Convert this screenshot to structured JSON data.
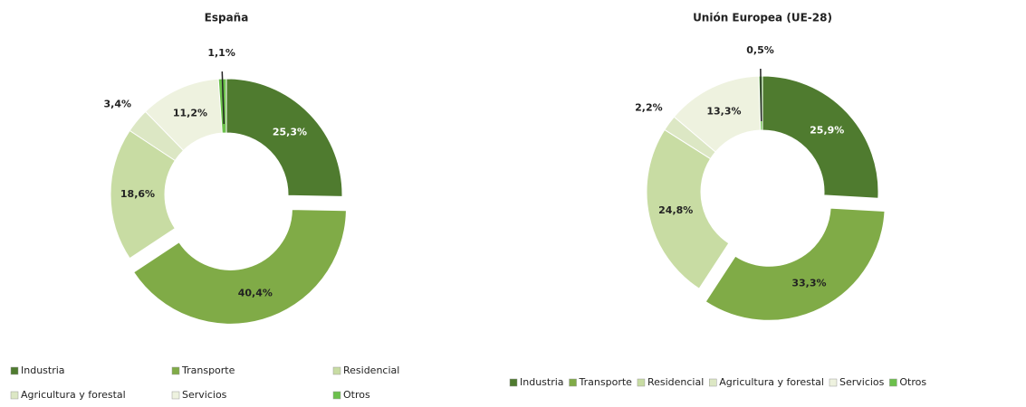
{
  "chart_data": [
    {
      "type": "donut",
      "title": "España",
      "categories": [
        "Industria",
        "Transporte",
        "Residencial",
        "Agricultura y forestal",
        "Servicios",
        "Otros"
      ],
      "values": [
        25.3,
        40.4,
        18.6,
        3.4,
        11.2,
        1.1
      ],
      "value_labels": [
        "25,3%",
        "40,4%",
        "18,6%",
        "3,4%",
        "11,2%",
        "1,1%"
      ],
      "colors": [
        "#4f7b2f",
        "#80ab47",
        "#c8dca3",
        "#dce7c4",
        "#eef2df",
        "#6cc04c"
      ]
    },
    {
      "type": "donut",
      "title": "Unión Europea (UE-28)",
      "categories": [
        "Industria",
        "Transporte",
        "Residencial",
        "Agricultura y forestal",
        "Servicios",
        "Otros"
      ],
      "values": [
        25.9,
        33.3,
        24.8,
        2.2,
        13.3,
        0.5
      ],
      "value_labels": [
        "25,9%",
        "33,3%",
        "24,8%",
        "2,2%",
        "13,3%",
        "0,5%"
      ],
      "colors": [
        "#4f7b2f",
        "#80ab47",
        "#c8dca3",
        "#dce7c4",
        "#eef2df",
        "#6cc04c"
      ]
    }
  ]
}
